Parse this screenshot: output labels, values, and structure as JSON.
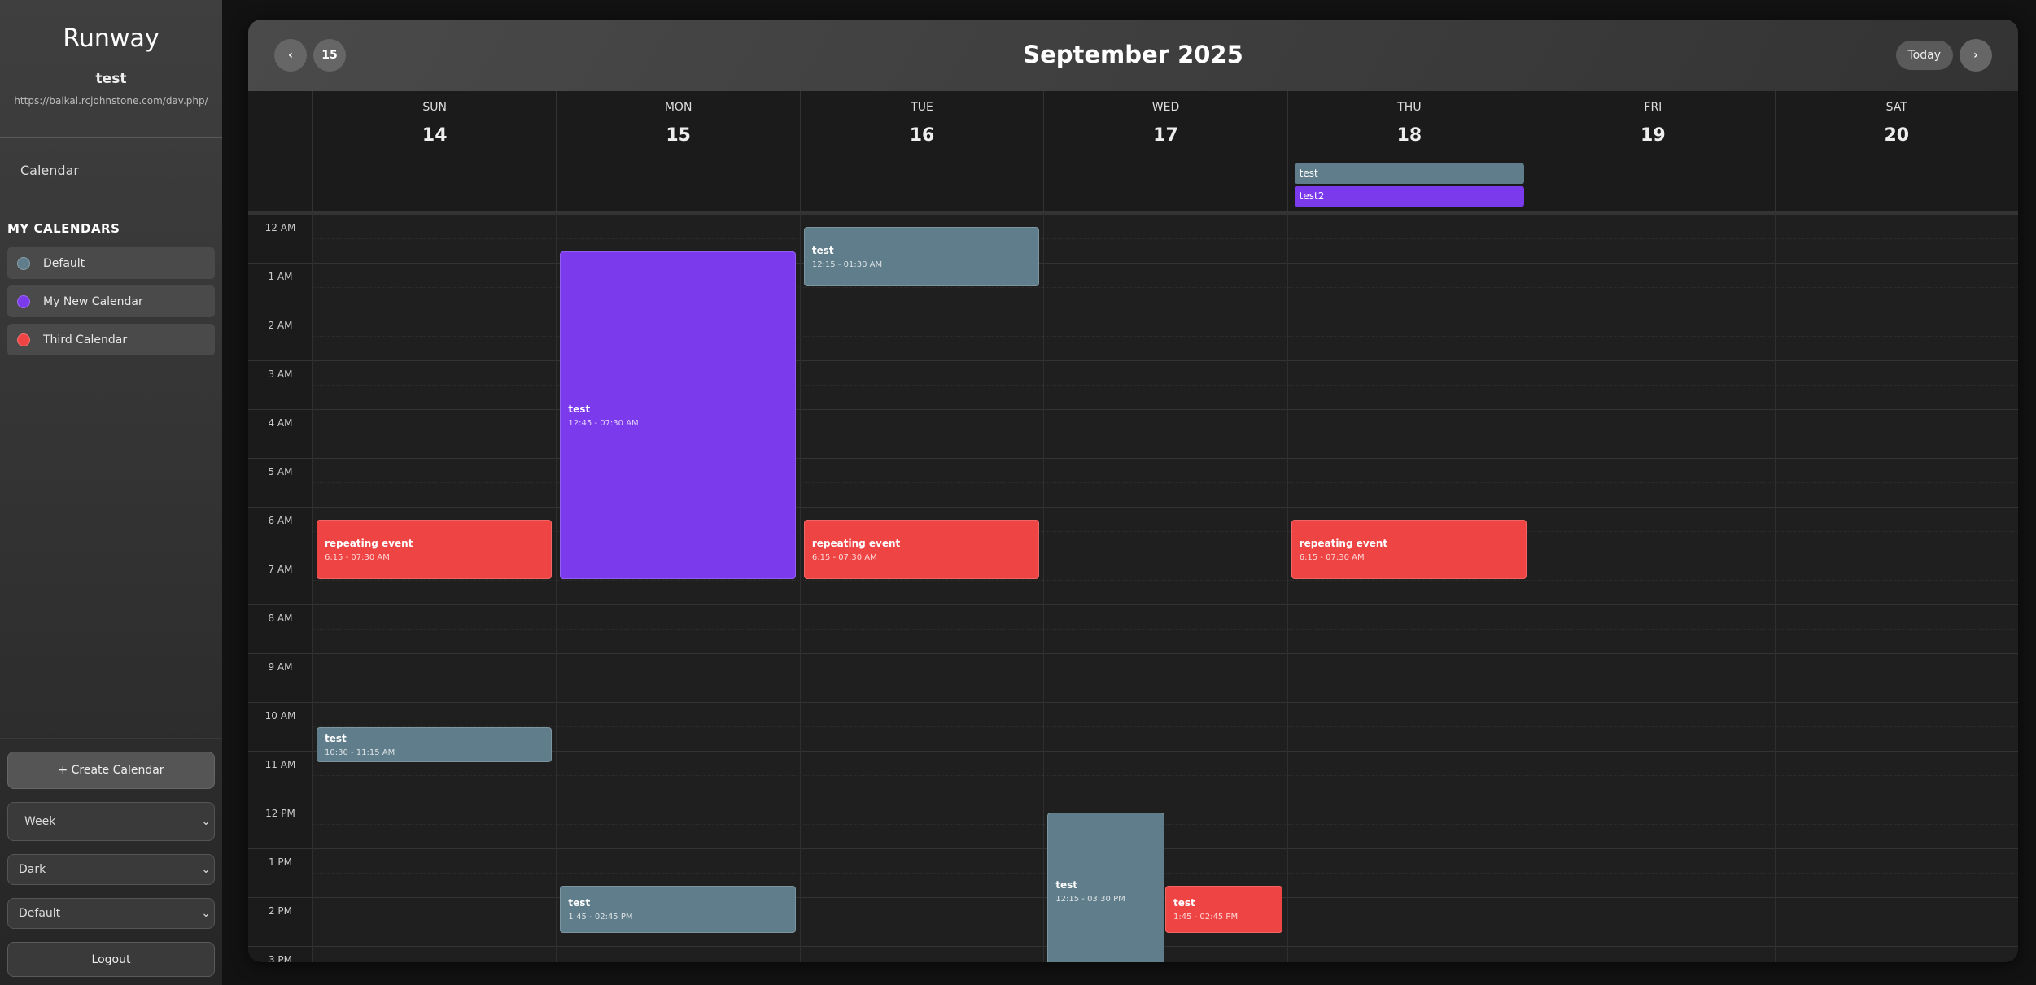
{
  "app": {
    "name": "Runway",
    "user": "test",
    "server_url": "https://baikal.rcjohnstone.com/dav.php/"
  },
  "nav": {
    "calendar": "Calendar"
  },
  "my_calendars": {
    "heading": "MY CALENDARS",
    "items": [
      {
        "name": "Default",
        "color": "#607d8b"
      },
      {
        "name": "My New Calendar",
        "color": "#7c3aed"
      },
      {
        "name": "Third Calendar",
        "color": "#ef4444"
      }
    ]
  },
  "controls": {
    "create": "+ Create Calendar",
    "view": "Week",
    "theme": "Dark",
    "style": "Default",
    "logout": "Logout"
  },
  "header": {
    "title": "September 2025",
    "prev": "‹",
    "next": "›",
    "today_badge": "15",
    "today": "Today"
  },
  "days": [
    {
      "name": "SUN",
      "date": "14"
    },
    {
      "name": "MON",
      "date": "15"
    },
    {
      "name": "TUE",
      "date": "16"
    },
    {
      "name": "WED",
      "date": "17"
    },
    {
      "name": "THU",
      "date": "18"
    },
    {
      "name": "FRI",
      "date": "19"
    },
    {
      "name": "SAT",
      "date": "20"
    }
  ],
  "hours": [
    "12 AM",
    "1 AM",
    "2 AM",
    "3 AM",
    "4 AM",
    "5 AM",
    "6 AM",
    "7 AM",
    "8 AM",
    "9 AM",
    "10 AM",
    "11 AM",
    "12 PM",
    "1 PM",
    "2 PM",
    "3 PM"
  ],
  "all_day": [
    {
      "day": 4,
      "title": "test",
      "calendar": 0
    },
    {
      "day": 4,
      "title": "test2",
      "calendar": 1
    }
  ],
  "events": [
    {
      "day": 1,
      "title": "test",
      "time": "12:45 - 07:30 AM",
      "start": 0.75,
      "end": 7.5,
      "calendar": 1
    },
    {
      "day": 2,
      "title": "test",
      "time": "12:15 - 01:30 AM",
      "start": 0.25,
      "end": 1.5,
      "calendar": 0
    },
    {
      "day": 0,
      "title": "repeating event",
      "time": "6:15 - 07:30 AM",
      "start": 6.25,
      "end": 7.5,
      "calendar": 2
    },
    {
      "day": 2,
      "title": "repeating event",
      "time": "6:15 - 07:30 AM",
      "start": 6.25,
      "end": 7.5,
      "calendar": 2
    },
    {
      "day": 4,
      "title": "repeating event",
      "time": "6:15 - 07:30 AM",
      "start": 6.25,
      "end": 7.5,
      "calendar": 2
    },
    {
      "day": 0,
      "title": "test",
      "time": "10:30 - 11:15 AM",
      "start": 10.5,
      "end": 11.25,
      "calendar": 0
    },
    {
      "day": 1,
      "title": "test",
      "time": "1:45 - 02:45 PM",
      "start": 13.75,
      "end": 14.75,
      "calendar": 0
    },
    {
      "day": 3,
      "title": "test",
      "time": "12:15 - 03:30 PM",
      "start": 12.25,
      "end": 15.5,
      "calendar": 0,
      "lane": 0,
      "lanes": 2
    },
    {
      "day": 3,
      "title": "test",
      "time": "1:45 - 02:45 PM",
      "start": 13.75,
      "end": 14.75,
      "calendar": 2,
      "lane": 1,
      "lanes": 2
    }
  ]
}
